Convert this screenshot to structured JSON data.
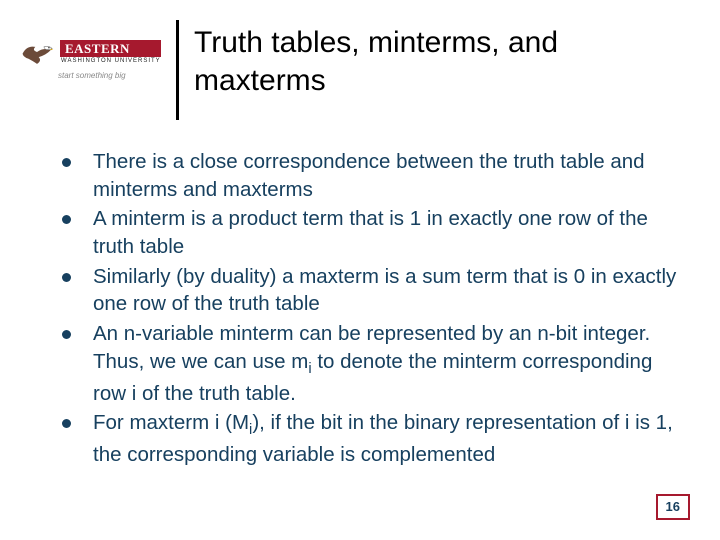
{
  "logo": {
    "main": "EASTERN",
    "sub": "WASHINGTON UNIVERSITY",
    "tag": "start something big"
  },
  "title": "Truth tables, minterms, and maxterms",
  "bullets": [
    {
      "text": "There is a close correspondence between the truth table and minterms and maxterms"
    },
    {
      "text": "A minterm is a product term that is 1 in exactly one row of the truth table"
    },
    {
      "text": "Similarly (by duality) a maxterm is a sum term that is 0 in exactly one row of the truth table"
    },
    {
      "html": "An n-variable minterm can be represented by an n-bit integer. Thus, we we can use m<span class=\"sub\">i</span> to denote the minterm corresponding row i of the truth table."
    },
    {
      "html": "For maxterm i (M<span class=\"sub\">i</span>), if the bit in the binary representation of i is 1, the corresponding variable is complemented"
    }
  ],
  "page_number": "16",
  "colors": {
    "brand_red": "#a6192e",
    "text_navy": "#17405f",
    "eagle_body": "#6c4b3a",
    "eagle_head": "#ffffff"
  }
}
